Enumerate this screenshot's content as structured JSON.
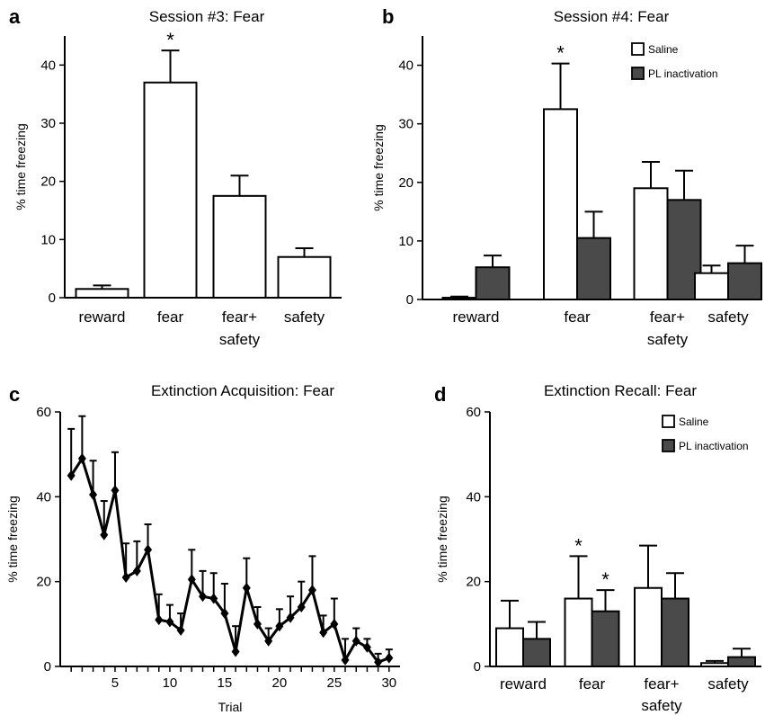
{
  "chart_data": [
    {
      "id": "a",
      "panel_letter": "a",
      "type": "bar",
      "title": "Session #3: Fear",
      "ylabel": "% time freezing",
      "ylim": [
        0,
        45
      ],
      "yticks": [
        0,
        10,
        20,
        30,
        40
      ],
      "categories": [
        "reward",
        "fear",
        "fear+\nsafety",
        "safety"
      ],
      "series": [
        {
          "values": [
            1.5,
            37,
            17.5,
            7
          ],
          "errors": [
            0.6,
            5.5,
            3.5,
            1.5
          ],
          "color": "#ffffff"
        }
      ],
      "significance": [
        {
          "category": 1,
          "series": 0,
          "label": "*"
        }
      ]
    },
    {
      "id": "b",
      "panel_letter": "b",
      "type": "bar",
      "title": "Session #4: Fear",
      "ylabel": "% time freezing",
      "ylim": [
        0,
        45
      ],
      "yticks": [
        0,
        10,
        20,
        30,
        40
      ],
      "categories": [
        "reward",
        "fear",
        "fear+\nsafety",
        "safety"
      ],
      "series": [
        {
          "name": "Saline",
          "values": [
            0.3,
            32.5,
            19,
            4.5
          ],
          "errors": [
            0.2,
            7.8,
            4.5,
            1.3
          ],
          "color": "#ffffff"
        },
        {
          "name": "PL inactivation",
          "values": [
            5.5,
            10.5,
            17,
            6.2
          ],
          "errors": [
            2,
            4.5,
            5,
            3
          ],
          "color": "#4a4a4a"
        }
      ],
      "legend": "top-right",
      "significance": [
        {
          "category": 1,
          "series": 0,
          "label": "*"
        }
      ]
    },
    {
      "id": "c",
      "panel_letter": "c",
      "type": "line",
      "title": "Extinction Acquisition: Fear",
      "xlabel": "Trial",
      "ylabel": "% time freezing",
      "xlim": [
        0,
        31
      ],
      "ylim": [
        0,
        60
      ],
      "xticks": [
        5,
        10,
        15,
        20,
        25,
        30
      ],
      "yticks": [
        0,
        20,
        40,
        60
      ],
      "x": [
        1,
        2,
        3,
        4,
        5,
        6,
        7,
        8,
        9,
        10,
        11,
        12,
        13,
        14,
        15,
        16,
        17,
        18,
        19,
        20,
        21,
        22,
        23,
        24,
        25,
        26,
        27,
        28,
        29,
        30
      ],
      "series": [
        {
          "values": [
            45,
            49,
            40.5,
            31,
            41.5,
            21,
            22.5,
            27.5,
            11,
            10.5,
            8.5,
            20.5,
            16.5,
            16,
            12.5,
            3.5,
            18.5,
            10,
            6,
            9.5,
            11.5,
            14,
            18,
            8,
            10,
            1.5,
            6,
            4.5,
            1,
            2
          ],
          "errors": [
            11,
            10,
            8,
            8,
            9,
            8,
            7,
            6,
            6,
            4,
            4,
            7,
            6,
            6,
            7,
            6,
            7,
            4,
            3,
            4,
            5,
            6,
            8,
            4,
            6,
            5,
            3,
            2,
            2,
            2
          ]
        }
      ]
    },
    {
      "id": "d",
      "panel_letter": "d",
      "type": "bar",
      "title": "Extinction Recall: Fear",
      "ylabel": "% time freezing",
      "ylim": [
        0,
        60
      ],
      "yticks": [
        0,
        20,
        40,
        60
      ],
      "categories": [
        "reward",
        "fear",
        "fear+\nsafety",
        "safety"
      ],
      "series": [
        {
          "name": "Saline",
          "values": [
            9,
            16,
            18.5,
            0.8
          ],
          "errors": [
            6.5,
            10,
            10,
            0.5
          ],
          "color": "#ffffff"
        },
        {
          "name": "PL inactivation",
          "values": [
            6.5,
            13,
            16,
            2.2
          ],
          "errors": [
            4,
            5,
            6,
            2
          ],
          "color": "#4a4a4a"
        }
      ],
      "legend": "top-right",
      "significance": [
        {
          "category": 1,
          "series": 0,
          "label": "*"
        },
        {
          "category": 1,
          "series": 1,
          "label": "*"
        }
      ]
    }
  ]
}
